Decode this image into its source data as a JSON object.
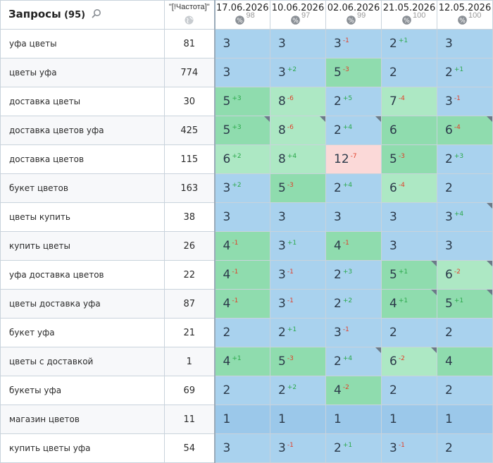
{
  "header": {
    "queries_title": "Запросы",
    "queries_count": "(95)",
    "freq_label": "\"[!Частота]\"",
    "dates": [
      {
        "date": "17.06.2026",
        "vis": "98"
      },
      {
        "date": "10.06.2026",
        "vis": "97"
      },
      {
        "date": "02.06.2026",
        "vis": "99"
      },
      {
        "date": "21.05.2026",
        "vis": "100"
      },
      {
        "date": "12.05.2026",
        "vis": "100"
      }
    ]
  },
  "colors": {
    "blue": "#a9d2ee",
    "green": "#8fdcae",
    "light_green": "#ade8c4",
    "pink": "#fbd9d8",
    "up": "#2aa84a",
    "down": "#e0402a"
  },
  "rows": [
    {
      "query": "уфа цветы",
      "freq": "81",
      "cells": [
        {
          "pos": "3",
          "chg": "",
          "dir": "",
          "bg": "blue",
          "corner": false
        },
        {
          "pos": "3",
          "chg": "",
          "dir": "",
          "bg": "blue",
          "corner": false
        },
        {
          "pos": "3",
          "chg": "-1",
          "dir": "down",
          "bg": "blue",
          "corner": false
        },
        {
          "pos": "2",
          "chg": "+1",
          "dir": "up",
          "bg": "blue",
          "corner": false
        },
        {
          "pos": "3",
          "chg": "",
          "dir": "",
          "bg": "blue",
          "corner": false
        }
      ]
    },
    {
      "query": "цветы уфа",
      "freq": "774",
      "cells": [
        {
          "pos": "3",
          "chg": "",
          "dir": "",
          "bg": "blue",
          "corner": false
        },
        {
          "pos": "3",
          "chg": "+2",
          "dir": "up",
          "bg": "blue",
          "corner": false
        },
        {
          "pos": "5",
          "chg": "-3",
          "dir": "down",
          "bg": "green",
          "corner": false
        },
        {
          "pos": "2",
          "chg": "",
          "dir": "",
          "bg": "blue",
          "corner": false
        },
        {
          "pos": "2",
          "chg": "+1",
          "dir": "up",
          "bg": "blue",
          "corner": false
        }
      ]
    },
    {
      "query": "доставка цветы",
      "freq": "30",
      "cells": [
        {
          "pos": "5",
          "chg": "+3",
          "dir": "up",
          "bg": "green",
          "corner": false
        },
        {
          "pos": "8",
          "chg": "-6",
          "dir": "down",
          "bg": "lgreen",
          "corner": false
        },
        {
          "pos": "2",
          "chg": "+5",
          "dir": "up",
          "bg": "blue",
          "corner": false
        },
        {
          "pos": "7",
          "chg": "-4",
          "dir": "down",
          "bg": "lgreen",
          "corner": false
        },
        {
          "pos": "3",
          "chg": "-1",
          "dir": "down",
          "bg": "blue",
          "corner": false
        }
      ]
    },
    {
      "query": "доставка цветов уфа",
      "freq": "425",
      "cells": [
        {
          "pos": "5",
          "chg": "+3",
          "dir": "up",
          "bg": "green",
          "corner": true
        },
        {
          "pos": "8",
          "chg": "-6",
          "dir": "down",
          "bg": "lgreen",
          "corner": true
        },
        {
          "pos": "2",
          "chg": "+4",
          "dir": "up",
          "bg": "blue",
          "corner": true
        },
        {
          "pos": "6",
          "chg": "",
          "dir": "",
          "bg": "green",
          "corner": false
        },
        {
          "pos": "6",
          "chg": "-4",
          "dir": "down",
          "bg": "green",
          "corner": true
        }
      ]
    },
    {
      "query": "доставка цветов",
      "freq": "115",
      "cells": [
        {
          "pos": "6",
          "chg": "+2",
          "dir": "up",
          "bg": "lgreen",
          "corner": false
        },
        {
          "pos": "8",
          "chg": "+4",
          "dir": "up",
          "bg": "lgreen",
          "corner": false
        },
        {
          "pos": "12",
          "chg": "-7",
          "dir": "down",
          "bg": "pink",
          "corner": false
        },
        {
          "pos": "5",
          "chg": "-3",
          "dir": "down",
          "bg": "green",
          "corner": false
        },
        {
          "pos": "2",
          "chg": "+3",
          "dir": "up",
          "bg": "blue",
          "corner": false
        }
      ]
    },
    {
      "query": "букет цветов",
      "freq": "163",
      "cells": [
        {
          "pos": "3",
          "chg": "+2",
          "dir": "up",
          "bg": "blue",
          "corner": false
        },
        {
          "pos": "5",
          "chg": "-3",
          "dir": "down",
          "bg": "green",
          "corner": false
        },
        {
          "pos": "2",
          "chg": "+4",
          "dir": "up",
          "bg": "blue",
          "corner": false
        },
        {
          "pos": "6",
          "chg": "-4",
          "dir": "down",
          "bg": "lgreen",
          "corner": false
        },
        {
          "pos": "2",
          "chg": "",
          "dir": "",
          "bg": "blue",
          "corner": false
        }
      ]
    },
    {
      "query": "цветы купить",
      "freq": "38",
      "cells": [
        {
          "pos": "3",
          "chg": "",
          "dir": "",
          "bg": "blue",
          "corner": false
        },
        {
          "pos": "3",
          "chg": "",
          "dir": "",
          "bg": "blue",
          "corner": false
        },
        {
          "pos": "3",
          "chg": "",
          "dir": "",
          "bg": "blue",
          "corner": false
        },
        {
          "pos": "3",
          "chg": "",
          "dir": "",
          "bg": "blue",
          "corner": false
        },
        {
          "pos": "3",
          "chg": "+4",
          "dir": "up",
          "bg": "blue",
          "corner": true
        }
      ]
    },
    {
      "query": "купить цветы",
      "freq": "26",
      "cells": [
        {
          "pos": "4",
          "chg": "-1",
          "dir": "down",
          "bg": "green",
          "corner": false
        },
        {
          "pos": "3",
          "chg": "+1",
          "dir": "up",
          "bg": "blue",
          "corner": false
        },
        {
          "pos": "4",
          "chg": "-1",
          "dir": "down",
          "bg": "green",
          "corner": false
        },
        {
          "pos": "3",
          "chg": "",
          "dir": "",
          "bg": "blue",
          "corner": false
        },
        {
          "pos": "3",
          "chg": "",
          "dir": "",
          "bg": "blue",
          "corner": false
        }
      ]
    },
    {
      "query": "уфа доставка цветов",
      "freq": "22",
      "cells": [
        {
          "pos": "4",
          "chg": "-1",
          "dir": "down",
          "bg": "green",
          "corner": false
        },
        {
          "pos": "3",
          "chg": "-1",
          "dir": "down",
          "bg": "blue",
          "corner": false
        },
        {
          "pos": "2",
          "chg": "+3",
          "dir": "up",
          "bg": "blue",
          "corner": false
        },
        {
          "pos": "5",
          "chg": "+1",
          "dir": "up",
          "bg": "green",
          "corner": true
        },
        {
          "pos": "6",
          "chg": "-2",
          "dir": "down",
          "bg": "lgreen",
          "corner": true
        }
      ]
    },
    {
      "query": "цветы доставка уфа",
      "freq": "87",
      "cells": [
        {
          "pos": "4",
          "chg": "-1",
          "dir": "down",
          "bg": "green",
          "corner": false
        },
        {
          "pos": "3",
          "chg": "-1",
          "dir": "down",
          "bg": "blue",
          "corner": false
        },
        {
          "pos": "2",
          "chg": "+2",
          "dir": "up",
          "bg": "blue",
          "corner": false
        },
        {
          "pos": "4",
          "chg": "+1",
          "dir": "up",
          "bg": "green",
          "corner": true
        },
        {
          "pos": "5",
          "chg": "+1",
          "dir": "up",
          "bg": "green",
          "corner": true
        }
      ]
    },
    {
      "query": "букет уфа",
      "freq": "21",
      "cells": [
        {
          "pos": "2",
          "chg": "",
          "dir": "",
          "bg": "blue",
          "corner": false
        },
        {
          "pos": "2",
          "chg": "+1",
          "dir": "up",
          "bg": "blue",
          "corner": false
        },
        {
          "pos": "3",
          "chg": "-1",
          "dir": "down",
          "bg": "blue",
          "corner": false
        },
        {
          "pos": "2",
          "chg": "",
          "dir": "",
          "bg": "blue",
          "corner": false
        },
        {
          "pos": "2",
          "chg": "",
          "dir": "",
          "bg": "blue",
          "corner": false
        }
      ]
    },
    {
      "query": "цветы с доставкой",
      "freq": "1",
      "cells": [
        {
          "pos": "4",
          "chg": "+1",
          "dir": "up",
          "bg": "green",
          "corner": false
        },
        {
          "pos": "5",
          "chg": "-3",
          "dir": "down",
          "bg": "green",
          "corner": false
        },
        {
          "pos": "2",
          "chg": "+4",
          "dir": "up",
          "bg": "blue",
          "corner": true
        },
        {
          "pos": "6",
          "chg": "-2",
          "dir": "down",
          "bg": "lgreen",
          "corner": true
        },
        {
          "pos": "4",
          "chg": "",
          "dir": "",
          "bg": "green",
          "corner": false
        }
      ]
    },
    {
      "query": "букеты уфа",
      "freq": "69",
      "cells": [
        {
          "pos": "2",
          "chg": "",
          "dir": "",
          "bg": "blue",
          "corner": false
        },
        {
          "pos": "2",
          "chg": "+2",
          "dir": "up",
          "bg": "blue",
          "corner": false
        },
        {
          "pos": "4",
          "chg": "-2",
          "dir": "down",
          "bg": "green",
          "corner": false
        },
        {
          "pos": "2",
          "chg": "",
          "dir": "",
          "bg": "blue",
          "corner": false
        },
        {
          "pos": "2",
          "chg": "",
          "dir": "",
          "bg": "blue",
          "corner": false
        }
      ]
    },
    {
      "query": "магазин цветов",
      "freq": "11",
      "cells": [
        {
          "pos": "1",
          "chg": "",
          "dir": "",
          "bg": "dblue",
          "corner": false
        },
        {
          "pos": "1",
          "chg": "",
          "dir": "",
          "bg": "dblue",
          "corner": false
        },
        {
          "pos": "1",
          "chg": "",
          "dir": "",
          "bg": "dblue",
          "corner": false
        },
        {
          "pos": "1",
          "chg": "",
          "dir": "",
          "bg": "dblue",
          "corner": false
        },
        {
          "pos": "1",
          "chg": "",
          "dir": "",
          "bg": "dblue",
          "corner": false
        }
      ]
    },
    {
      "query": "купить цветы уфа",
      "freq": "54",
      "cells": [
        {
          "pos": "3",
          "chg": "",
          "dir": "",
          "bg": "blue",
          "corner": false
        },
        {
          "pos": "3",
          "chg": "-1",
          "dir": "down",
          "bg": "blue",
          "corner": false
        },
        {
          "pos": "2",
          "chg": "+1",
          "dir": "up",
          "bg": "blue",
          "corner": false
        },
        {
          "pos": "3",
          "chg": "-1",
          "dir": "down",
          "bg": "blue",
          "corner": false
        },
        {
          "pos": "2",
          "chg": "",
          "dir": "",
          "bg": "blue",
          "corner": false
        }
      ]
    }
  ]
}
